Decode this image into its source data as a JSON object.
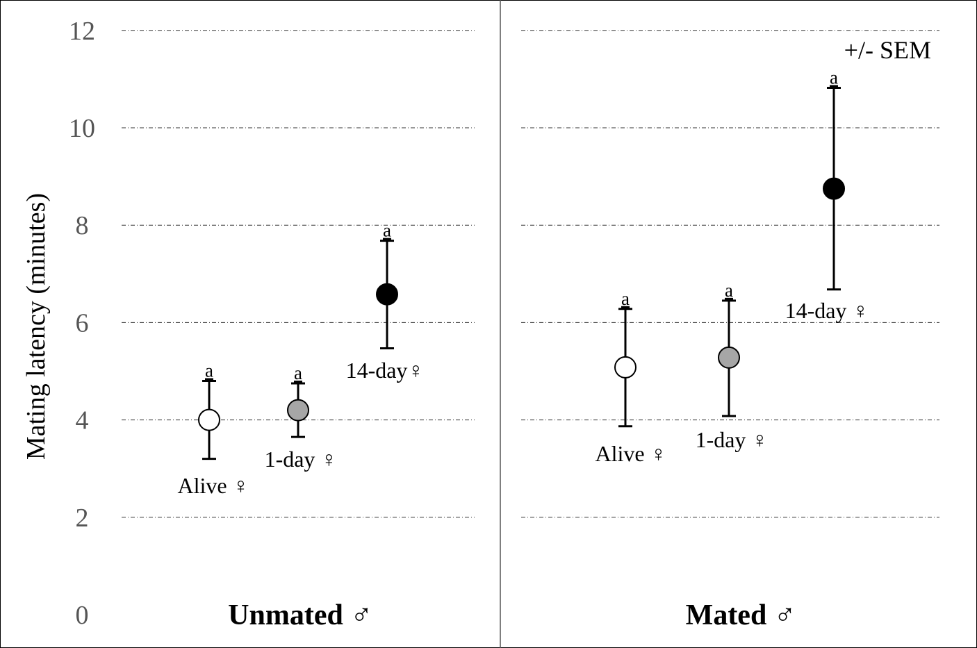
{
  "chart_data": {
    "type": "scatter",
    "ylabel": "Mating latency (minutes)",
    "ylim": [
      0,
      12
    ],
    "yticks": [
      0,
      2,
      4,
      6,
      8,
      10,
      12
    ],
    "grid": true,
    "annotation": "+/- SEM",
    "colors": {
      "alive": "#ffffff",
      "one_day": "#a6a6a6",
      "fourteen_day": "#000000"
    },
    "panels": [
      {
        "group": "Unmated ♂",
        "points": [
          {
            "label": "Alive ♀",
            "mean": 4.0,
            "err_low": 3.2,
            "err_high": 4.8,
            "sig": "a",
            "fill": "#ffffff"
          },
          {
            "label": "1-day ♀",
            "mean": 4.2,
            "err_low": 3.65,
            "err_high": 4.75,
            "sig": "a",
            "fill": "#a6a6a6"
          },
          {
            "label": "14-day♀",
            "mean": 6.58,
            "err_low": 5.47,
            "err_high": 7.68,
            "sig": "a",
            "fill": "#000000"
          }
        ]
      },
      {
        "group": "Mated ♂",
        "points": [
          {
            "label": "Alive ♀",
            "mean": 5.08,
            "err_low": 3.87,
            "err_high": 6.28,
            "sig": "a",
            "fill": "#ffffff"
          },
          {
            "label": "1-day ♀",
            "mean": 5.28,
            "err_low": 4.08,
            "err_high": 6.45,
            "sig": "a",
            "fill": "#a6a6a6"
          },
          {
            "label": "14-day ♀",
            "mean": 8.75,
            "err_low": 6.68,
            "err_high": 10.82,
            "sig": "a",
            "fill": "#000000"
          }
        ]
      }
    ]
  }
}
